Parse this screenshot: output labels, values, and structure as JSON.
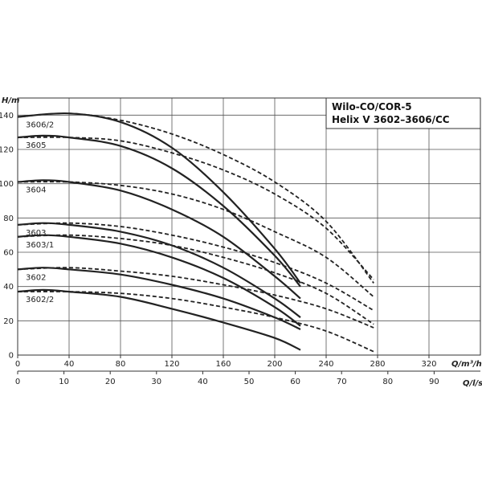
{
  "chart_data": {
    "type": "line",
    "title_lines": [
      "Wilo-CO/COR-5",
      "Helix V 3602–3606/CC"
    ],
    "ylabel": "H/m",
    "xlabel_top": "Q/m³/h",
    "xlabel_bottom": "Q/l/s",
    "ylim": [
      0,
      150
    ],
    "xlim_m3h": [
      0,
      360
    ],
    "xlim_ls": [
      0,
      100
    ],
    "y_ticks": [
      "0",
      "20",
      "40",
      "60",
      "80",
      "100",
      "120",
      "140"
    ],
    "x_ticks_m3h": [
      "0",
      "40",
      "80",
      "120",
      "160",
      "200",
      "240",
      "280",
      "320"
    ],
    "x_ticks_ls": [
      "0",
      "10",
      "20",
      "30",
      "40",
      "50",
      "60",
      "70",
      "80",
      "90"
    ],
    "grid": true,
    "series": [
      {
        "name": "3606/2",
        "solid": [
          [
            0,
            139
          ],
          [
            40,
            141
          ],
          [
            80,
            136
          ],
          [
            120,
            121
          ],
          [
            160,
            95
          ],
          [
            200,
            62
          ],
          [
            220,
            42
          ]
        ],
        "dashed": [
          [
            0,
            139
          ],
          [
            40,
            141
          ],
          [
            80,
            137
          ],
          [
            120,
            129
          ],
          [
            160,
            117
          ],
          [
            200,
            101
          ],
          [
            240,
            78
          ],
          [
            277,
            42
          ]
        ]
      },
      {
        "name": "3605",
        "solid": [
          [
            0,
            127
          ],
          [
            20,
            128
          ],
          [
            40,
            127
          ],
          [
            80,
            122
          ],
          [
            120,
            109
          ],
          [
            160,
            87
          ],
          [
            200,
            58
          ],
          [
            220,
            40
          ]
        ],
        "dashed": [
          [
            0,
            127
          ],
          [
            40,
            127
          ],
          [
            80,
            125
          ],
          [
            120,
            118
          ],
          [
            160,
            108
          ],
          [
            200,
            94
          ],
          [
            240,
            74
          ],
          [
            277,
            44
          ]
        ]
      },
      {
        "name": "3604",
        "solid": [
          [
            0,
            101
          ],
          [
            20,
            102
          ],
          [
            40,
            101
          ],
          [
            80,
            96
          ],
          [
            120,
            85
          ],
          [
            160,
            69
          ],
          [
            200,
            46
          ],
          [
            220,
            33
          ]
        ],
        "dashed": [
          [
            0,
            101
          ],
          [
            40,
            101
          ],
          [
            80,
            99
          ],
          [
            120,
            94
          ],
          [
            160,
            85
          ],
          [
            200,
            72
          ],
          [
            240,
            57
          ],
          [
            277,
            34
          ]
        ]
      },
      {
        "name": "3603",
        "solid": [
          [
            0,
            76
          ],
          [
            20,
            77
          ],
          [
            40,
            76
          ],
          [
            80,
            72
          ],
          [
            120,
            64
          ],
          [
            160,
            51
          ],
          [
            200,
            33
          ],
          [
            220,
            22
          ]
        ],
        "dashed": [
          [
            0,
            76
          ],
          [
            40,
            77
          ],
          [
            80,
            75
          ],
          [
            120,
            70
          ],
          [
            160,
            63
          ],
          [
            200,
            54
          ],
          [
            240,
            42
          ],
          [
            277,
            26
          ]
        ]
      },
      {
        "name": "3603/1",
        "solid": [
          [
            0,
            69
          ],
          [
            20,
            70
          ],
          [
            40,
            69
          ],
          [
            80,
            65
          ],
          [
            120,
            57
          ],
          [
            160,
            45
          ],
          [
            200,
            28
          ],
          [
            220,
            17
          ]
        ],
        "dashed": [
          [
            0,
            69
          ],
          [
            40,
            70
          ],
          [
            80,
            68
          ],
          [
            120,
            64
          ],
          [
            160,
            57
          ],
          [
            200,
            48
          ],
          [
            240,
            36
          ],
          [
            277,
            18
          ]
        ]
      },
      {
        "name": "3602",
        "solid": [
          [
            0,
            50
          ],
          [
            20,
            51
          ],
          [
            40,
            50
          ],
          [
            80,
            47
          ],
          [
            120,
            41
          ],
          [
            160,
            33
          ],
          [
            200,
            22
          ],
          [
            220,
            15
          ]
        ],
        "dashed": [
          [
            0,
            50
          ],
          [
            40,
            51
          ],
          [
            80,
            49
          ],
          [
            120,
            46
          ],
          [
            160,
            41
          ],
          [
            200,
            35
          ],
          [
            240,
            27
          ],
          [
            277,
            16
          ]
        ]
      },
      {
        "name": "3602/2",
        "solid": [
          [
            0,
            37
          ],
          [
            20,
            38
          ],
          [
            40,
            37
          ],
          [
            80,
            34
          ],
          [
            120,
            27
          ],
          [
            160,
            19
          ],
          [
            200,
            10
          ],
          [
            220,
            3
          ]
        ],
        "dashed": [
          [
            0,
            37
          ],
          [
            40,
            37
          ],
          [
            80,
            36
          ],
          [
            120,
            33
          ],
          [
            160,
            28
          ],
          [
            200,
            22
          ],
          [
            240,
            14
          ],
          [
            277,
            2
          ]
        ]
      }
    ]
  }
}
